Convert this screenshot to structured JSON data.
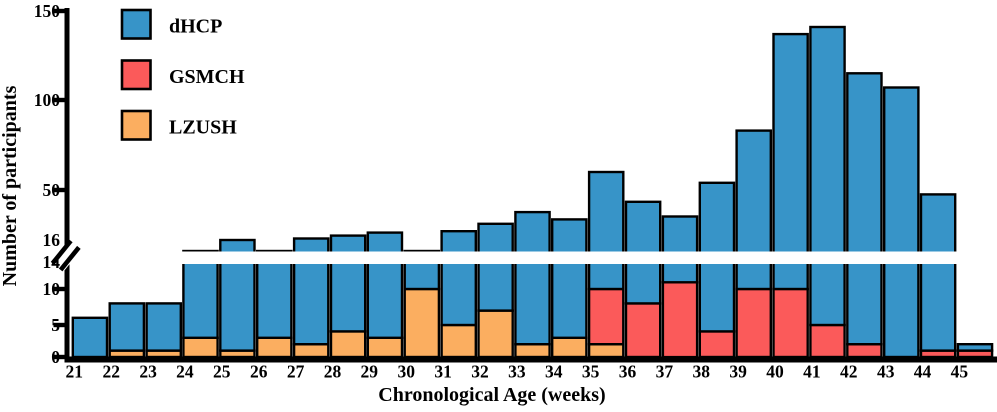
{
  "figure": {
    "y_axis_title": "Number of participants",
    "x_axis_title": "Chronological Age (weeks)"
  },
  "legend": [
    {
      "label": "dHCP",
      "color": "#3794C8"
    },
    {
      "label": "GSMCH",
      "color": "#FB5A5A"
    },
    {
      "label": "LZUSH",
      "color": "#FBAE60"
    }
  ],
  "chart_data": {
    "type": "bar",
    "stacked": true,
    "title": "",
    "xlabel": "Chronological Age (weeks)",
    "ylabel": "Number of participants",
    "categories": [
      21,
      22,
      23,
      24,
      25,
      26,
      27,
      28,
      29,
      30,
      31,
      32,
      33,
      34,
      35,
      36,
      37,
      38,
      39,
      40,
      41,
      42,
      43,
      44,
      45
    ],
    "stack_order_bottom_to_top": [
      "LZUSH",
      "GSMCH",
      "dHCP"
    ],
    "series": [
      {
        "name": "LZUSH",
        "color": "#FBAE60",
        "values": [
          0,
          1,
          1,
          3,
          1,
          3,
          2,
          4,
          3,
          10,
          5,
          7,
          2,
          3,
          2,
          0,
          0,
          0,
          0,
          0,
          0,
          0,
          0,
          0,
          0
        ]
      },
      {
        "name": "GSMCH",
        "color": "#FB5A5A",
        "values": [
          0,
          0,
          0,
          0,
          0,
          0,
          0,
          0,
          0,
          0,
          0,
          0,
          0,
          0,
          8,
          8,
          11,
          4,
          10,
          10,
          5,
          2,
          0,
          1,
          1
        ]
      },
      {
        "name": "dHCP",
        "color": "#3794C8",
        "values": [
          6,
          7,
          7,
          12,
          15,
          12,
          15,
          15,
          18,
          5,
          17,
          20,
          33,
          27,
          50,
          34,
          21,
          50,
          73,
          127,
          136,
          113,
          107,
          46,
          1
        ]
      }
    ],
    "totals": [
      6,
      8,
      8,
      15,
      16,
      15,
      17,
      19,
      21,
      15,
      22,
      27,
      35,
      30,
      60,
      42,
      32,
      54,
      83,
      137,
      141,
      115,
      107,
      47,
      2
    ],
    "y_axis": {
      "break_between": [
        14,
        16
      ],
      "tick_values": [
        0,
        5,
        10,
        50,
        100,
        150
      ],
      "label_values": [
        150,
        100,
        50,
        16,
        14,
        10,
        5,
        0
      ],
      "ylim_lower_segment": [
        0,
        14
      ],
      "ylim_upper_segment": [
        16,
        150
      ]
    },
    "legend_position": "upper-left",
    "grid": false
  }
}
